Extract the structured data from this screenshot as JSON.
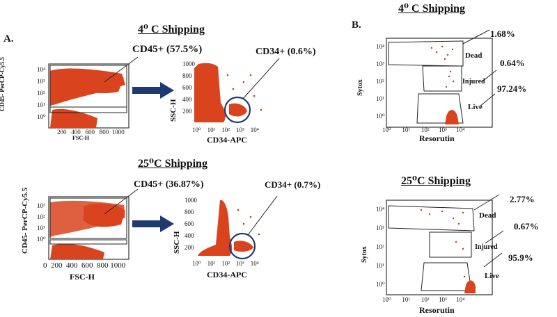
{
  "panel_a": "A.",
  "panel_b": "B.",
  "headings": {
    "a_top": "4⁰ C Shipping",
    "a_bottom": "25⁰C Shipping",
    "b_top": "4⁰ C Shipping",
    "b_bottom": "25⁰C Shipping"
  },
  "gate_labels": {
    "a_top_cd45": "CD45+ (57.5%)",
    "a_top_cd34": "CD34+ (0.6%)",
    "a_bottom_cd45": "CD45+ (36.87%)",
    "a_bottom_cd34": "CD34+ (0.7%)"
  },
  "axes": {
    "cd45_ylabel": "CD45- PerCP-Cy5.5",
    "fsc_xlabel": "FSC-H",
    "ssc_ylabel": "SSC-H",
    "cd34_xlabel": "CD34-APC",
    "sytox_ylabel": "Sytox",
    "resorutin_xlabel": "Resorutin"
  },
  "ticks": {
    "linear_x": [
      "200",
      "400",
      "600",
      "800",
      "1000"
    ],
    "linear_y": [
      "0",
      "200",
      "400",
      "600",
      "800",
      "1000"
    ],
    "log_x": [
      "10⁰",
      "10¹",
      "10²",
      "10³",
      "10⁴"
    ],
    "log_y": [
      "10⁰",
      "10¹",
      "10²",
      "10³",
      "10⁴"
    ]
  },
  "viability": {
    "top": {
      "dead_label": "Dead",
      "injured_label": "Injured",
      "live_label": "Live",
      "dead_pct": "1.68%",
      "injured_pct": "0.64%",
      "live_pct": "97.24%"
    },
    "bottom": {
      "dead_label": "Dead",
      "injured_label": "Injured",
      "live_label": "Live",
      "dead_pct": "2.77%",
      "injured_pct": "0.67%",
      "live_pct": "95.9%"
    }
  },
  "colors": {
    "events": "#d9441e",
    "gate_circle": "#1f3a70",
    "arrow": "#1f3a70"
  }
}
